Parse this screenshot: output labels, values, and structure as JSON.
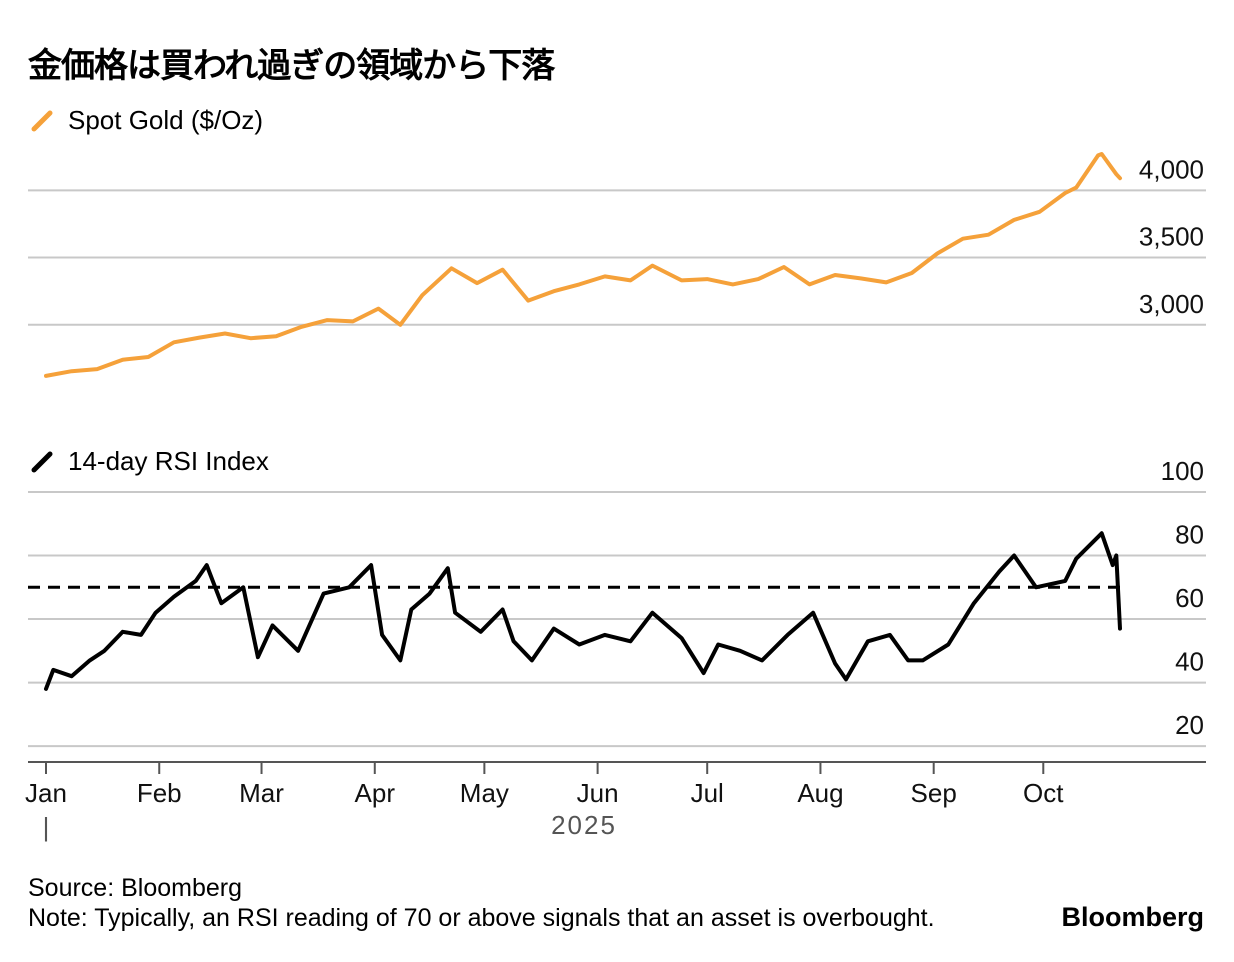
{
  "title": "金価格は買われ過ぎの領域から下落",
  "colors": {
    "gold": "#f5a13a",
    "rsi": "#000000",
    "grid": "#c8c8c8",
    "axis": "#555555"
  },
  "chart_data": [
    {
      "type": "line",
      "legend": "Spot Gold ($/Oz)",
      "ylim": [
        2500,
        4300
      ],
      "yticks": [
        3000,
        3500,
        4000
      ],
      "ytick_labels": [
        "3,000",
        "3,500",
        "4,000"
      ],
      "grid": true,
      "series": [
        {
          "name": "Spot Gold ($/Oz)",
          "x": [
            "2025-01-01",
            "2025-01-08",
            "2025-01-15",
            "2025-01-22",
            "2025-01-29",
            "2025-02-05",
            "2025-02-12",
            "2025-02-19",
            "2025-02-26",
            "2025-03-05",
            "2025-03-12",
            "2025-03-19",
            "2025-03-26",
            "2025-04-02",
            "2025-04-08",
            "2025-04-14",
            "2025-04-22",
            "2025-04-29",
            "2025-05-06",
            "2025-05-13",
            "2025-05-20",
            "2025-05-27",
            "2025-06-03",
            "2025-06-10",
            "2025-06-16",
            "2025-06-24",
            "2025-07-01",
            "2025-07-08",
            "2025-07-15",
            "2025-07-22",
            "2025-07-29",
            "2025-08-05",
            "2025-08-12",
            "2025-08-19",
            "2025-08-26",
            "2025-09-02",
            "2025-09-09",
            "2025-09-16",
            "2025-09-23",
            "2025-09-30",
            "2025-10-07",
            "2025-10-10",
            "2025-10-16",
            "2025-10-17",
            "2025-10-21",
            "2025-10-22"
          ],
          "values": [
            2620,
            2655,
            2670,
            2740,
            2760,
            2870,
            2905,
            2935,
            2900,
            2915,
            2985,
            3035,
            3025,
            3120,
            3000,
            3220,
            3420,
            3310,
            3410,
            3180,
            3250,
            3300,
            3360,
            3330,
            3440,
            3330,
            3340,
            3300,
            3340,
            3430,
            3300,
            3370,
            3345,
            3315,
            3385,
            3530,
            3640,
            3670,
            3780,
            3840,
            3980,
            4020,
            4260,
            4270,
            4120,
            4090
          ]
        }
      ]
    },
    {
      "type": "line",
      "legend": "14-day RSI Index",
      "ylim": [
        15,
        100
      ],
      "yticks": [
        20,
        40,
        60,
        80,
        100
      ],
      "ytick_labels": [
        "20",
        "40",
        "60",
        "80",
        "100"
      ],
      "reference_line": 70,
      "grid": true,
      "series": [
        {
          "name": "14-day RSI Index",
          "x": [
            "2025-01-01",
            "2025-01-03",
            "2025-01-08",
            "2025-01-13",
            "2025-01-17",
            "2025-01-22",
            "2025-01-27",
            "2025-01-31",
            "2025-02-05",
            "2025-02-11",
            "2025-02-14",
            "2025-02-18",
            "2025-02-24",
            "2025-02-28",
            "2025-03-04",
            "2025-03-11",
            "2025-03-18",
            "2025-03-25",
            "2025-03-31",
            "2025-04-03",
            "2025-04-08",
            "2025-04-11",
            "2025-04-16",
            "2025-04-21",
            "2025-04-23",
            "2025-04-30",
            "2025-05-06",
            "2025-05-09",
            "2025-05-14",
            "2025-05-20",
            "2025-05-27",
            "2025-06-03",
            "2025-06-10",
            "2025-06-16",
            "2025-06-24",
            "2025-06-30",
            "2025-07-04",
            "2025-07-10",
            "2025-07-16",
            "2025-07-23",
            "2025-07-30",
            "2025-08-05",
            "2025-08-08",
            "2025-08-14",
            "2025-08-20",
            "2025-08-25",
            "2025-08-29",
            "2025-09-05",
            "2025-09-12",
            "2025-09-19",
            "2025-09-23",
            "2025-09-29",
            "2025-10-07",
            "2025-10-10",
            "2025-10-17",
            "2025-10-20",
            "2025-10-21",
            "2025-10-22"
          ],
          "values": [
            38,
            44,
            42,
            47,
            50,
            56,
            55,
            62,
            67,
            72,
            77,
            65,
            70,
            48,
            58,
            50,
            68,
            70,
            77,
            55,
            47,
            63,
            68,
            76,
            62,
            56,
            63,
            53,
            47,
            57,
            52,
            55,
            53,
            62,
            54,
            43,
            52,
            50,
            47,
            55,
            62,
            46,
            41,
            53,
            55,
            47,
            47,
            52,
            65,
            75,
            80,
            70,
            72,
            79,
            87,
            77,
            80,
            57
          ]
        }
      ]
    }
  ],
  "x_axis": {
    "months": [
      "Jan",
      "Feb",
      "Mar",
      "Apr",
      "May",
      "Jun",
      "Jul",
      "Aug",
      "Sep",
      "Oct"
    ],
    "month_starts": [
      "2025-01-01",
      "2025-02-01",
      "2025-03-01",
      "2025-04-01",
      "2025-05-01",
      "2025-06-01",
      "2025-07-01",
      "2025-08-01",
      "2025-09-01",
      "2025-10-01"
    ],
    "year_label": "2025",
    "year_marker": "|"
  },
  "footer": {
    "source": "Source: Bloomberg",
    "note": "Note: Typically, an RSI reading of 70 or above signals that an asset is overbought.",
    "brand": "Bloomberg"
  }
}
